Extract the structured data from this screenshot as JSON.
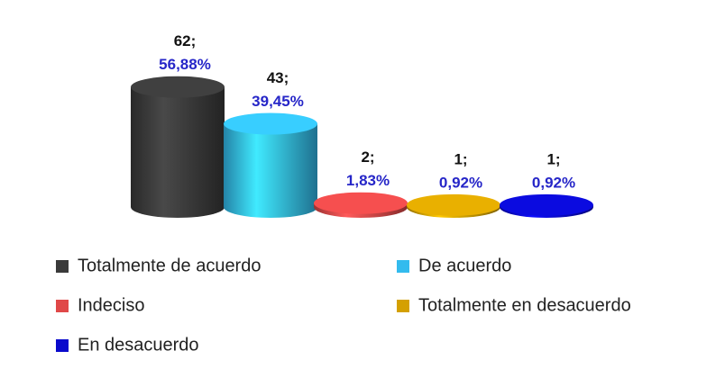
{
  "chart_data": {
    "type": "cylinder",
    "categories": [
      "Totalmente de acuerdo",
      "De acuerdo",
      "Indeciso",
      "Totalmente en desacuerdo",
      "En desacuerdo"
    ],
    "values": [
      62,
      43,
      2,
      1,
      1
    ],
    "value_labels": [
      "62;",
      "43;",
      "2;",
      "1;",
      "1;"
    ],
    "percentages": [
      56.88,
      39.45,
      1.83,
      0.92,
      0.92
    ],
    "percentage_labels": [
      "56,88%",
      "39,45%",
      "1,83%",
      "0,92%",
      "0,92%"
    ],
    "colors": [
      "#3a3a3a",
      "#33bbee",
      "#e04848",
      "#d4a000",
      "#0a0acc"
    ],
    "legend": "bottom"
  }
}
